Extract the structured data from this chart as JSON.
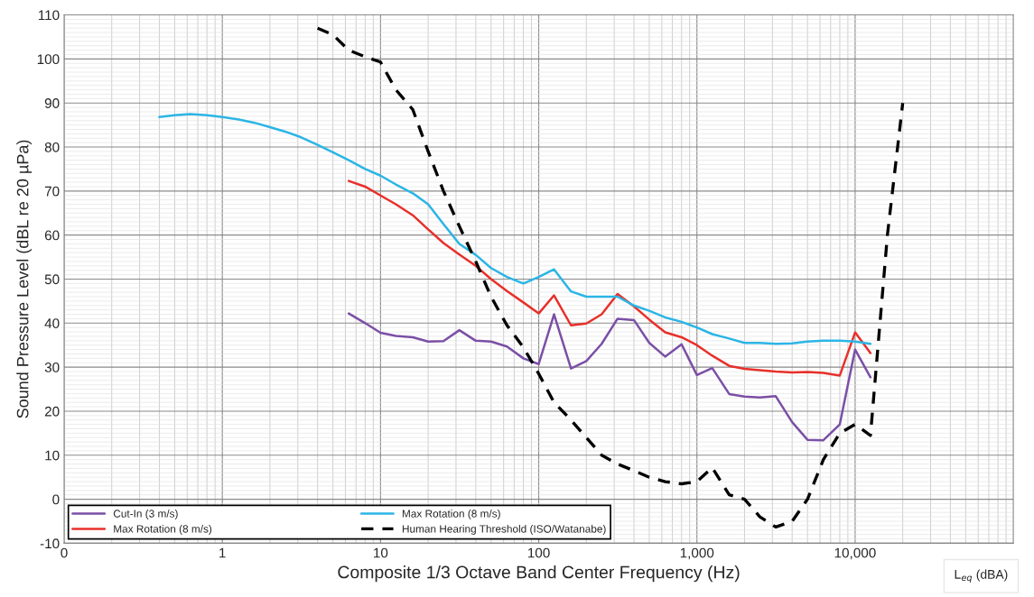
{
  "chart_data": {
    "type": "line",
    "xlabel": "Composite 1/3 Octave Band Center Frequency (Hz)",
    "ylabel": "Sound Pressure Level (dBL re 20 µPa)",
    "log": "x",
    "grid": true,
    "legend": "bottom left",
    "line_style": "solid",
    "marker": "none",
    "xlim": [
      0.1,
      100000
    ],
    "xticks": [
      {
        "value": 0.1,
        "label": "0"
      },
      {
        "value": 1,
        "label": "1"
      },
      {
        "value": 10,
        "label": "10"
      },
      {
        "value": 100,
        "label": "100"
      },
      {
        "value": 1000,
        "label": "1,000"
      },
      {
        "value": 10000,
        "label": "10,000"
      }
    ],
    "ylim": [
      -10,
      110
    ],
    "yticks": [
      -10,
      0,
      10,
      20,
      30,
      40,
      50,
      60,
      70,
      80,
      90,
      100,
      110
    ],
    "annotations": [
      "L$_{eq}$ (dBA)"
    ],
    "series": [
      {
        "name": "Cut-In (3 m/s)",
        "color": "#7b4fa6",
        "x": [
          6.3,
          8,
          10,
          12.5,
          16,
          20,
          25,
          31.5,
          40,
          50,
          63,
          80,
          100,
          125,
          160,
          200,
          250,
          315,
          400,
          500,
          630,
          800,
          1000,
          1250,
          1600,
          2000,
          2500,
          3150,
          4000,
          5000,
          6300,
          8000,
          10000,
          12500
        ],
        "values": [
          42.2,
          40,
          37.8,
          37.1,
          36.8,
          35.8,
          35.9,
          38.4,
          36,
          35.8,
          34.7,
          32,
          30.7,
          42,
          29.7,
          31.4,
          35.3,
          41,
          40.7,
          35.5,
          32.4,
          35.2,
          28.2,
          29.8,
          23.9,
          23.3,
          23.1,
          23.4,
          17.5,
          13.5,
          13.4,
          17,
          34,
          27.7
        ]
      },
      {
        "name": "Max Rotation (8 m/s)",
        "color": "#e8302a",
        "x": [
          6.3,
          8,
          10,
          12.5,
          16,
          20,
          25,
          31.5,
          40,
          50,
          63,
          80,
          100,
          125,
          160,
          200,
          250,
          315,
          400,
          500,
          630,
          800,
          1000,
          1250,
          1600,
          2000,
          2500,
          3150,
          4000,
          5000,
          6300,
          8000,
          10000,
          12500
        ],
        "values": [
          72.3,
          71,
          69,
          67,
          64.5,
          61.3,
          58.2,
          55.6,
          53,
          50,
          47.3,
          44.7,
          42.2,
          46.3,
          39.5,
          39.9,
          42,
          46.6,
          43.8,
          40.8,
          37.9,
          36.8,
          35,
          32.6,
          30.3,
          29.6,
          29.3,
          29,
          28.8,
          28.9,
          28.7,
          28.1,
          37.9,
          33.2
        ]
      },
      {
        "name": "Max Rotation (8 m/s)",
        "color": "#2bb5e6",
        "x": [
          0.4,
          0.5,
          0.63,
          0.8,
          1,
          1.25,
          1.6,
          2,
          2.5,
          3.15,
          4,
          5,
          6.3,
          8,
          10,
          12.5,
          16,
          20,
          25,
          31.5,
          40,
          50,
          63,
          80,
          100,
          125,
          160,
          200,
          250,
          315,
          400,
          500,
          630,
          800,
          1000,
          1250,
          1600,
          2000,
          2500,
          3150,
          4000,
          5000,
          6300,
          8000,
          10000,
          12500
        ],
        "values": [
          86.8,
          87.2,
          87.5,
          87.2,
          86.8,
          86.3,
          85.5,
          84.5,
          83.5,
          82.2,
          80.5,
          78.8,
          77,
          75,
          73.5,
          71.5,
          69.5,
          67,
          62.5,
          58,
          55.5,
          52.5,
          50.5,
          49,
          50.5,
          52.2,
          47.2,
          46,
          46,
          46,
          44,
          42.8,
          41.3,
          40.3,
          39,
          37.5,
          36.5,
          35.5,
          35.5,
          35.3,
          35.4,
          35.8,
          36,
          36,
          35.8,
          35.3
        ]
      },
      {
        "name": "Human Hearing Threshold (ISO/Watanabe)",
        "color": "#000000",
        "line_style": "dashed",
        "x": [
          4,
          5,
          6.3,
          8,
          10,
          12.5,
          16,
          20,
          25,
          31.5,
          40,
          50,
          63,
          80,
          100,
          125,
          160,
          200,
          250,
          315,
          400,
          500,
          630,
          800,
          1000,
          1250,
          1600,
          2000,
          2500,
          3150,
          4000,
          5000,
          6300,
          8000,
          10000,
          12500,
          16000,
          20000
        ],
        "values": [
          107,
          105.5,
          102,
          100.5,
          99.3,
          93,
          88.5,
          79,
          70,
          62,
          54,
          46,
          39.5,
          34.5,
          28.5,
          22,
          18,
          14,
          10,
          8,
          6.5,
          5,
          4,
          3.5,
          4,
          7.2,
          1,
          0,
          -4,
          -6.3,
          -5,
          0,
          9,
          15,
          17,
          14.5,
          60,
          90
        ]
      }
    ]
  }
}
